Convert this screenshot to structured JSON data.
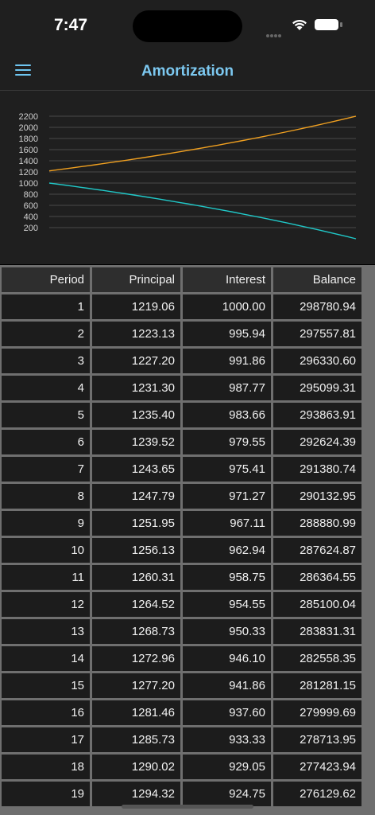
{
  "status": {
    "time": "7:47"
  },
  "nav": {
    "title": "Amortization"
  },
  "colors": {
    "principal": "#f0a020",
    "interest": "#20c8c8",
    "accent": "#7cc8f0"
  },
  "chart_data": {
    "type": "line",
    "y_ticks": [
      "2200",
      "2000",
      "1800",
      "1600",
      "1400",
      "1200",
      "1000",
      "800",
      "600",
      "400",
      "200"
    ],
    "ylim": [
      0,
      2200
    ],
    "grid": true,
    "series": [
      {
        "color": "#f0a020",
        "x": [
          1,
          360
        ],
        "y_start": 1219.06,
        "y_end": 2200
      },
      {
        "color": "#20c8c8",
        "x": [
          1,
          360
        ],
        "y_start": 1000.0,
        "y_end": 0
      }
    ]
  },
  "table": {
    "headers": [
      "Period",
      "Principal",
      "Interest",
      "Balance"
    ],
    "rows": [
      [
        "1",
        "1219.06",
        "1000.00",
        "298780.94"
      ],
      [
        "2",
        "1223.13",
        "995.94",
        "297557.81"
      ],
      [
        "3",
        "1227.20",
        "991.86",
        "296330.60"
      ],
      [
        "4",
        "1231.30",
        "987.77",
        "295099.31"
      ],
      [
        "5",
        "1235.40",
        "983.66",
        "293863.91"
      ],
      [
        "6",
        "1239.52",
        "979.55",
        "292624.39"
      ],
      [
        "7",
        "1243.65",
        "975.41",
        "291380.74"
      ],
      [
        "8",
        "1247.79",
        "971.27",
        "290132.95"
      ],
      [
        "9",
        "1251.95",
        "967.11",
        "288880.99"
      ],
      [
        "10",
        "1256.13",
        "962.94",
        "287624.87"
      ],
      [
        "11",
        "1260.31",
        "958.75",
        "286364.55"
      ],
      [
        "12",
        "1264.52",
        "954.55",
        "285100.04"
      ],
      [
        "13",
        "1268.73",
        "950.33",
        "283831.31"
      ],
      [
        "14",
        "1272.96",
        "946.10",
        "282558.35"
      ],
      [
        "15",
        "1277.20",
        "941.86",
        "281281.15"
      ],
      [
        "16",
        "1281.46",
        "937.60",
        "279999.69"
      ],
      [
        "17",
        "1285.73",
        "933.33",
        "278713.95"
      ],
      [
        "18",
        "1290.02",
        "929.05",
        "277423.94"
      ],
      [
        "19",
        "1294.32",
        "924.75",
        "276129.62"
      ]
    ]
  }
}
